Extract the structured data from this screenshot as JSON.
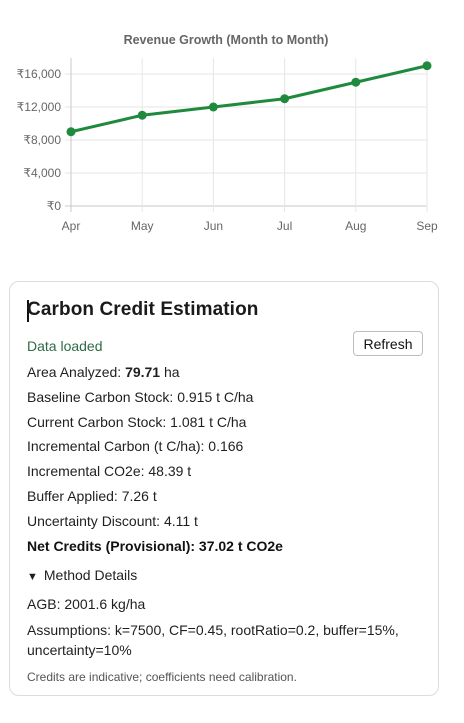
{
  "chart_data": {
    "type": "line",
    "title": "Revenue Growth (Month to Month)",
    "categories": [
      "Apr",
      "May",
      "Jun",
      "Jul",
      "Aug",
      "Sep"
    ],
    "series": [
      {
        "values": [
          9000,
          11000,
          12000,
          13000,
          15000,
          17000
        ],
        "color": "#1f8a3e"
      }
    ],
    "yticks": [
      "₹0",
      "₹4,000",
      "₹8,000",
      "₹12,000",
      "₹16,000"
    ],
    "ylim": [
      0,
      17000
    ],
    "grid": true,
    "legend": "none"
  },
  "card": {
    "title": "Carbon Credit Estimation",
    "status": "Data loaded",
    "refresh_label": "Refresh",
    "area_label": "Area Analyzed: ",
    "area_value": "79.71",
    "area_unit": " ha",
    "baseline": "Baseline Carbon Stock: 0.915 t C/ha",
    "current": "Current Carbon Stock: 1.081 t C/ha",
    "incremental_carbon": "Incremental Carbon (t C/ha): 0.166",
    "incremental_co2e": "Incremental CO2e: 48.39 t",
    "buffer": "Buffer Applied: 7.26 t",
    "uncertainty": "Uncertainty Discount: 4.11 t",
    "net_credits": "Net Credits (Provisional): 37.02 t CO2e",
    "method_toggle": "Method Details",
    "agb": "AGB: 2001.6 kg/ha",
    "assumptions": "Assumptions: k=7500, CF=0.45, rootRatio=0.2, buffer=15%, uncertainty=10%",
    "note": "Credits are indicative; coefficients need calibration."
  }
}
